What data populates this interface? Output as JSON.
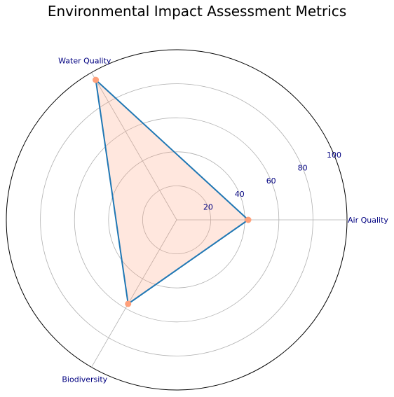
{
  "chart_data": {
    "type": "radar",
    "title": "Environmental Impact Assessment Metrics",
    "categories": [
      "Air Quality",
      "Water Quality",
      "Biodiversity"
    ],
    "series": [
      {
        "values": [
          42,
          95,
          57
        ]
      }
    ],
    "radial_ticks": [
      20,
      40,
      60,
      80,
      100
    ],
    "rlim": [
      0,
      100
    ],
    "grid": true,
    "colors": {
      "line": "#1f77b4",
      "fill": "#ffa07a",
      "marker": "#ffa07a",
      "label": "#000080",
      "grid": "#b0b0b0",
      "frame": "#000000"
    }
  }
}
